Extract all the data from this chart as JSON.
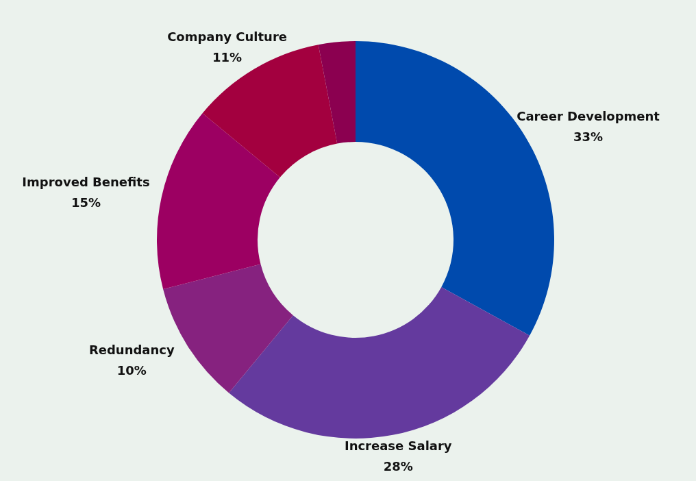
{
  "chart_data": {
    "type": "donut",
    "categories": [
      "Career Development",
      "Increase Salary",
      "Redundancy",
      "Improved Benefits",
      "Company Culture",
      null
    ],
    "values": [
      33,
      28,
      10,
      15,
      11,
      3
    ],
    "colors": [
      "#004aad",
      "#643a9e",
      "#86227f",
      "#9c0062",
      "#a3003f",
      "#8b0050"
    ],
    "value_labels": [
      "33%",
      "28%",
      "10%",
      "15%",
      "11%",
      null
    ]
  }
}
